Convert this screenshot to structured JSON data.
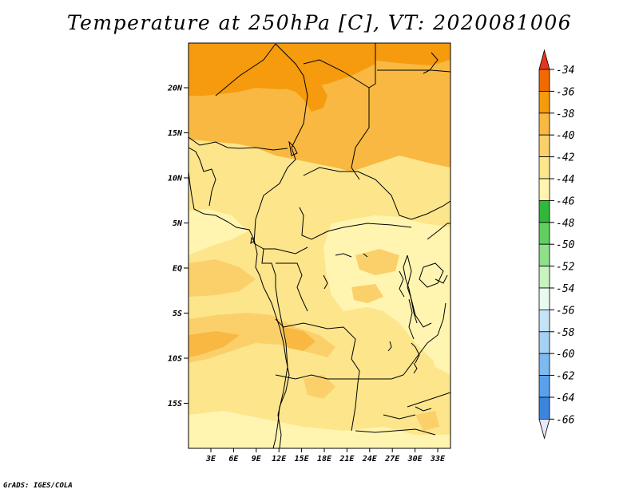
{
  "title": "Temperature at 250hPa [C], VT: 2020081006",
  "credit": "GrADS: IGES/COLA",
  "map": {
    "lat_ticks": [
      "20N",
      "15N",
      "10N",
      "5N",
      "EQ",
      "5S",
      "10S",
      "15S"
    ],
    "lon_ticks": [
      "3E",
      "6E",
      "9E",
      "12E",
      "15E",
      "18E",
      "21E",
      "24E",
      "27E",
      "30E",
      "33E"
    ],
    "shaded_levels": [
      {
        "range": "-44..-42",
        "color": "#fff5b0"
      },
      {
        "range": "-42..-40",
        "color": "#fde58c"
      },
      {
        "range": "-40..-38",
        "color": "#fbd06a"
      },
      {
        "range": "-38..-36",
        "color": "#f8b841"
      },
      {
        "range": "-36..-34",
        "color": "#f59b0d"
      }
    ]
  },
  "colorbar": {
    "labels": [
      "-34",
      "-36",
      "-38",
      "-40",
      "-42",
      "-44",
      "-46",
      "-48",
      "-50",
      "-52",
      "-54",
      "-56",
      "-58",
      "-60",
      "-62",
      "-64",
      "-66"
    ],
    "colors": [
      "#e8361c",
      "#f06a00",
      "#f59b0d",
      "#f8b841",
      "#fbd06a",
      "#fde58c",
      "#fff5b0",
      "#30b838",
      "#5fcf5f",
      "#8fe08a",
      "#c8f2c0",
      "#e8fbf0",
      "#c5e4f7",
      "#a5d1f3",
      "#7cbaef",
      "#5aa1ea",
      "#3b85de",
      "#2366cf",
      "#164aba",
      "#0d2f96",
      "#08166c",
      "#e8e8f8"
    ]
  }
}
